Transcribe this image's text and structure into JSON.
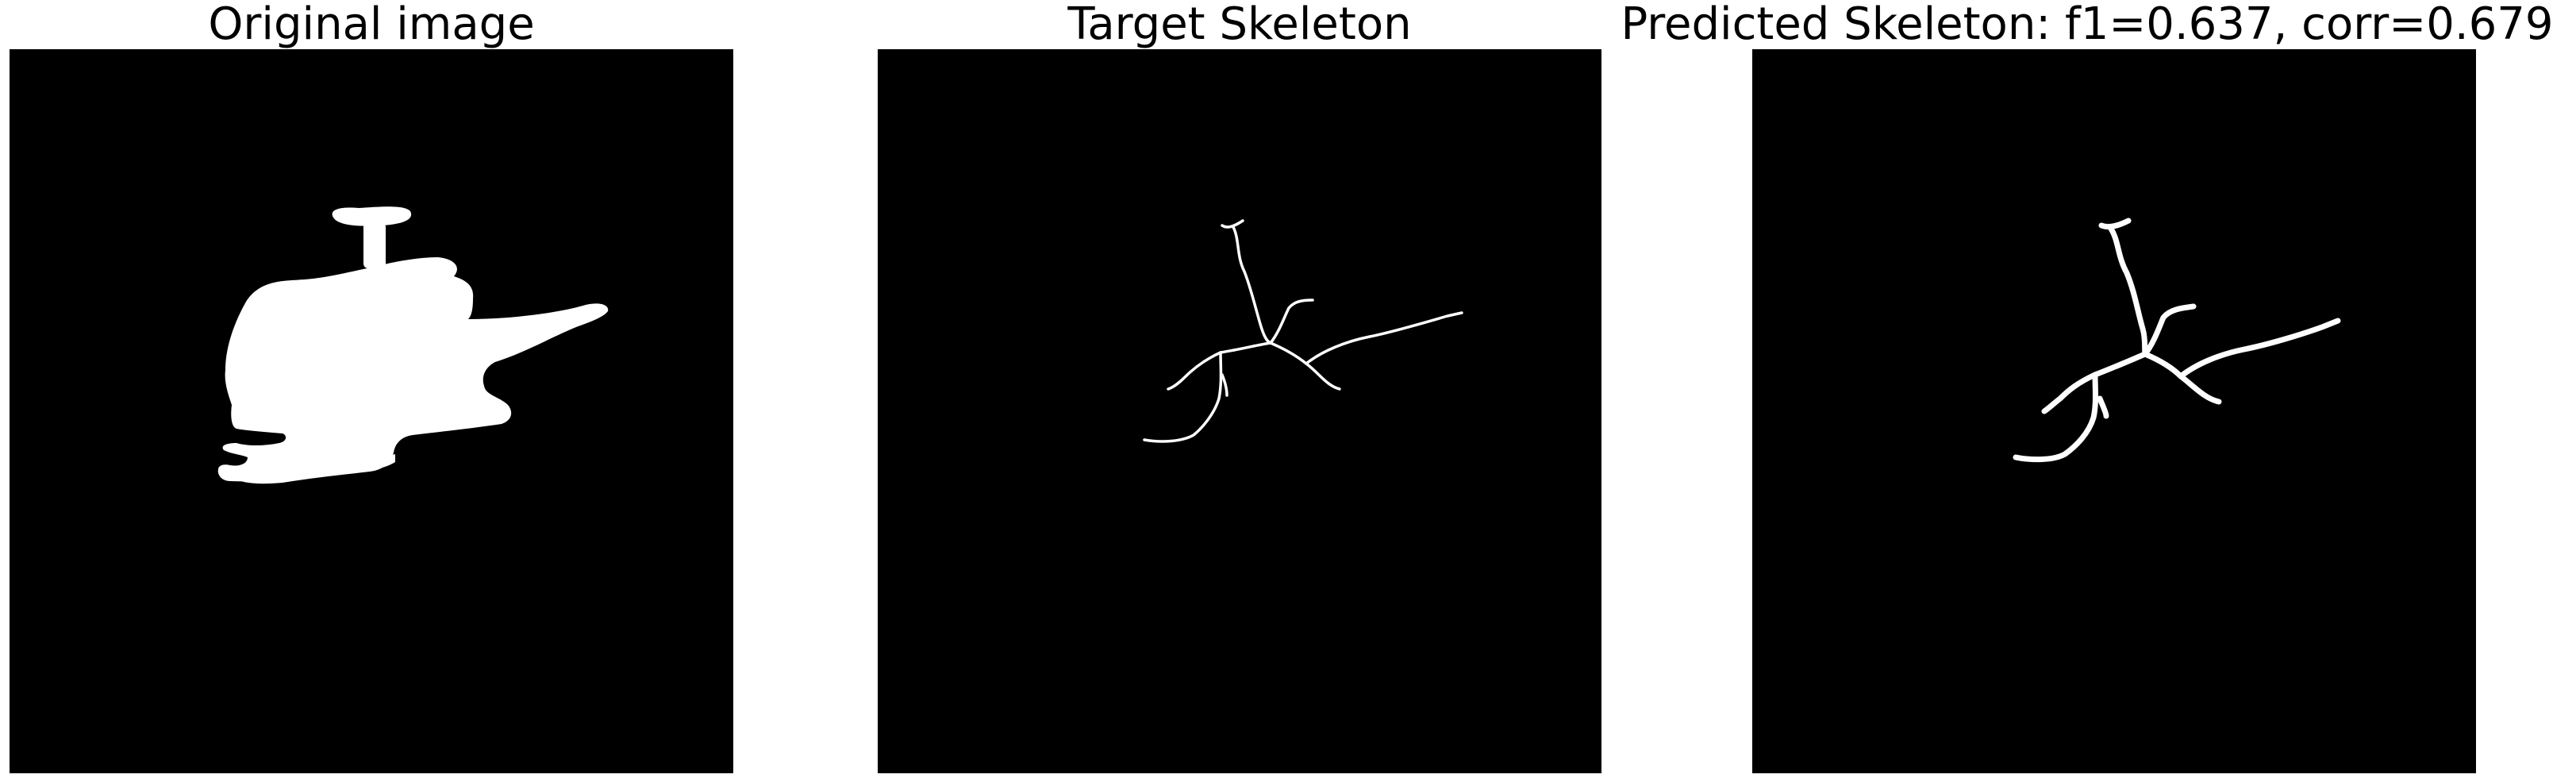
{
  "panels": [
    {
      "title": "Original image"
    },
    {
      "title": "Target Skeleton"
    },
    {
      "title": "Predicted Skeleton: f1=0.637, corr=0.679"
    }
  ],
  "colors": {
    "background": "#ffffff",
    "panel_bg": "#000000",
    "foreground": "#ffffff"
  }
}
